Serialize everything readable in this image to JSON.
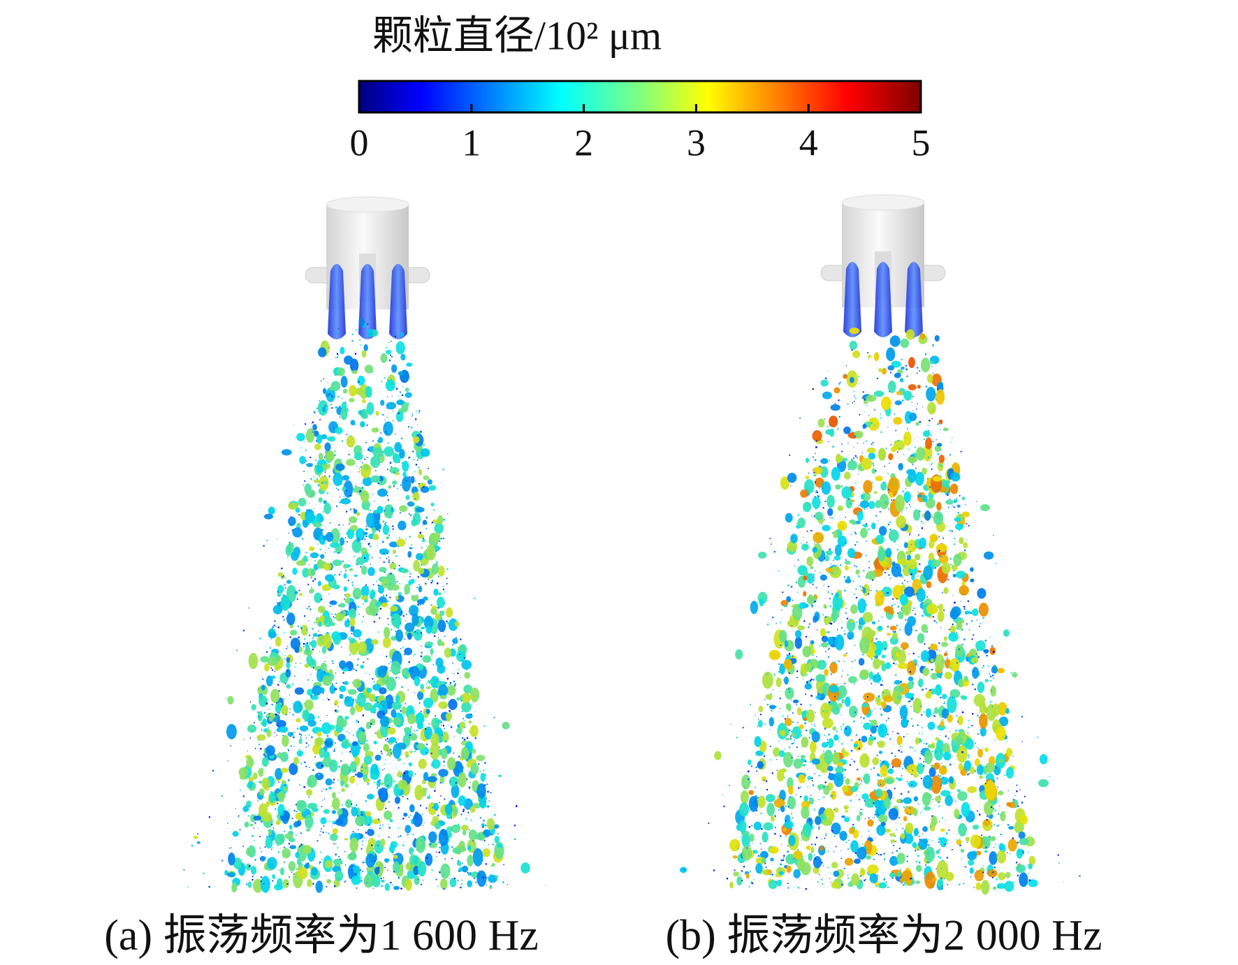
{
  "colorbar": {
    "title": "颗粒直径/10² μm",
    "range": [
      0,
      5
    ],
    "ticks": [
      0,
      1,
      2,
      3,
      4,
      5
    ]
  },
  "panels": [
    {
      "caption": "(a) 振荡频率为1 600 Hz"
    },
    {
      "caption": "(b) 振荡频率为2 000 Hz"
    }
  ]
}
